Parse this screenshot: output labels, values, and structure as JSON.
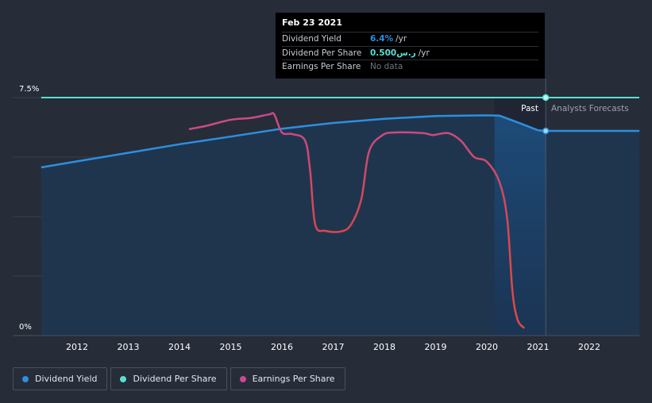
{
  "chart_data": {
    "type": "line",
    "x_ticks": [
      "2012",
      "2013",
      "2014",
      "2015",
      "2016",
      "2017",
      "2018",
      "2019",
      "2020",
      "2021",
      "2022"
    ],
    "y_tick_labels": [
      "7.5%",
      "0%"
    ],
    "ylim": [
      0,
      7.5
    ],
    "series": [
      {
        "name": "Dividend Yield",
        "color": "#2d8fe0",
        "unit": "%",
        "points": [
          [
            2011.3,
            5.3
          ],
          [
            2012,
            5.49
          ],
          [
            2013,
            5.76
          ],
          [
            2014,
            6.03
          ],
          [
            2015,
            6.27
          ],
          [
            2016,
            6.52
          ],
          [
            2017,
            6.7
          ],
          [
            2018,
            6.83
          ],
          [
            2019,
            6.92
          ],
          [
            2020,
            6.94
          ],
          [
            2020.25,
            6.93
          ],
          [
            2020.6,
            6.72
          ],
          [
            2021.0,
            6.47
          ],
          [
            2021.15,
            6.45
          ],
          [
            2022.0,
            6.45
          ],
          [
            2022.98,
            6.45
          ]
        ]
      },
      {
        "name": "Dividend Per Share",
        "color": "#56e0d4",
        "unit": "SAR",
        "points": [
          [
            2011.3,
            0.5
          ],
          [
            2021.15,
            0.5
          ]
        ]
      },
      {
        "name": "Earnings Per Share",
        "color_past": "#c94a8e",
        "color_decline": "#e04848",
        "points": [
          [
            2014.2,
            6.51
          ],
          [
            2014.5,
            6.6
          ],
          [
            2015,
            6.8
          ],
          [
            2015.4,
            6.86
          ],
          [
            2015.75,
            6.97
          ],
          [
            2015.85,
            6.97
          ],
          [
            2016.0,
            6.4
          ],
          [
            2016.2,
            6.35
          ],
          [
            2016.45,
            6.15
          ],
          [
            2016.55,
            5.2
          ],
          [
            2016.65,
            3.5
          ],
          [
            2016.85,
            3.3
          ],
          [
            2017.15,
            3.28
          ],
          [
            2017.35,
            3.5
          ],
          [
            2017.55,
            4.3
          ],
          [
            2017.7,
            5.8
          ],
          [
            2017.95,
            6.3
          ],
          [
            2018.2,
            6.4
          ],
          [
            2018.75,
            6.38
          ],
          [
            2018.95,
            6.32
          ],
          [
            2019.25,
            6.38
          ],
          [
            2019.5,
            6.13
          ],
          [
            2019.75,
            5.63
          ],
          [
            2020.0,
            5.48
          ],
          [
            2020.25,
            4.83
          ],
          [
            2020.4,
            3.65
          ],
          [
            2020.5,
            1.4
          ],
          [
            2020.6,
            0.5
          ],
          [
            2020.72,
            0.25
          ]
        ]
      }
    ],
    "regions": {
      "past_label": "Past",
      "forecast_label": "Analysts Forecasts"
    },
    "grid": true
  },
  "tooltip": {
    "date": "Feb 23 2021",
    "rows": [
      {
        "label": "Dividend Yield",
        "value": "6.4%",
        "unit": "/yr",
        "color": "#2d8fe0"
      },
      {
        "label": "Dividend Per Share",
        "value": "0.500ر.س",
        "unit": "/yr",
        "color": "#56e0d4"
      },
      {
        "label": "Earnings Per Share",
        "value": "No data",
        "unit": "",
        "color": "#6f7580"
      }
    ]
  },
  "legend": [
    {
      "label": "Dividend Yield",
      "color": "#2d8fe0"
    },
    {
      "label": "Dividend Per Share",
      "color": "#56e0d4"
    },
    {
      "label": "Earnings Per Share",
      "color": "#c94a8e"
    }
  ]
}
